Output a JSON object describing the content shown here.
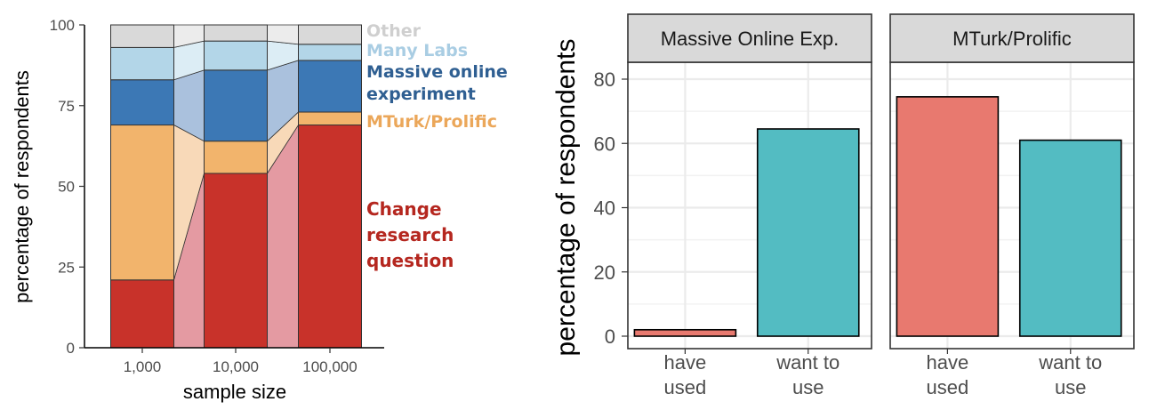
{
  "chart_data": [
    {
      "type": "bar",
      "stacked": true,
      "xlabel": "sample size",
      "ylabel": "percentage of respondents",
      "ylim": [
        0,
        100
      ],
      "yticks": [
        0,
        25,
        50,
        75,
        100
      ],
      "categories": [
        "1,000",
        "10,000",
        "100,000"
      ],
      "series": [
        {
          "name": "Change research question",
          "color": "#c8322a",
          "connector_color": "#e49aa2",
          "values": [
            21,
            54,
            69
          ]
        },
        {
          "name": "MTurk/Prolific",
          "color": "#f2b46c",
          "connector_color": "#f8d9b8",
          "values": [
            48,
            10,
            4
          ]
        },
        {
          "name": "Massive online experiment",
          "color": "#3c78b5",
          "connector_color": "#aac1dd",
          "values": [
            14,
            22,
            16
          ]
        },
        {
          "name": "Many Labs",
          "color": "#b3d6e8",
          "connector_color": "#dcedf5",
          "values": [
            10,
            9,
            5
          ]
        },
        {
          "name": "Other",
          "color": "#d9d9d9",
          "connector_color": "#ececec",
          "values": [
            7,
            5,
            6
          ]
        }
      ],
      "legend_labels": [
        {
          "key": "other",
          "lines": [
            "Other"
          ],
          "color": "#cfcfcf"
        },
        {
          "key": "many-labs",
          "lines": [
            "Many Labs"
          ],
          "color": "#a9cde3"
        },
        {
          "key": "massive",
          "lines": [
            "Massive online",
            "experiment"
          ],
          "color": "#2f5f92"
        },
        {
          "key": "mturk",
          "lines": [
            "MTurk/Prolific"
          ],
          "color": "#eba75a"
        },
        {
          "key": "change",
          "lines": [
            "Change",
            "research",
            "question"
          ],
          "color": "#b5271f"
        }
      ],
      "legend_placement": "right"
    },
    {
      "type": "bar",
      "faceted": true,
      "ylabel": "percentage of respondents",
      "ylim": [
        0,
        85
      ],
      "yticks": [
        0,
        20,
        40,
        60,
        80
      ],
      "grid": true,
      "categories": [
        [
          "have",
          "used"
        ],
        [
          "want to",
          "use"
        ]
      ],
      "bar_colors": [
        "#e8796f",
        "#53bcc2"
      ],
      "panels": [
        {
          "strip": "Massive Online Exp.",
          "values": [
            2,
            64.5
          ]
        },
        {
          "strip": "MTurk/Prolific",
          "values": [
            74.5,
            61
          ]
        }
      ]
    }
  ]
}
